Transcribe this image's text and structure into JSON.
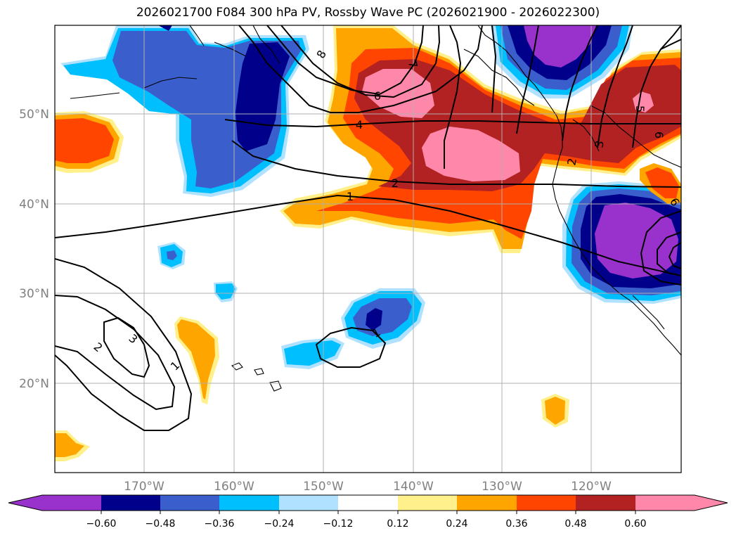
{
  "title": "2026021700 F084 300 hPa PV, Rossby Wave PC (2026021900 - 2026022300)",
  "map": {
    "lat_ticks": [
      "20°N",
      "30°N",
      "40°N",
      "50°N"
    ],
    "lon_ticks": [
      "170°W",
      "160°W",
      "150°W",
      "140°W",
      "130°W",
      "120°W"
    ],
    "contour_labels": [
      "8",
      "7",
      "6",
      "4",
      "2",
      "1",
      "3",
      "2",
      "1",
      "1",
      "5",
      "6",
      "3",
      "2",
      "6"
    ]
  },
  "colorbar": {
    "tick_labels": [
      "−0.60",
      "−0.48",
      "−0.36",
      "−0.24",
      "−0.12",
      "0.12",
      "0.24",
      "0.36",
      "0.48",
      "0.60"
    ],
    "colors": [
      "#9932cc",
      "#00008b",
      "#3a5fcd",
      "#00bfff",
      "#b0e2ff",
      "#ffffff",
      "#fff08c",
      "#ffa500",
      "#ff4500",
      "#b22222",
      "#ff88aa"
    ]
  }
}
